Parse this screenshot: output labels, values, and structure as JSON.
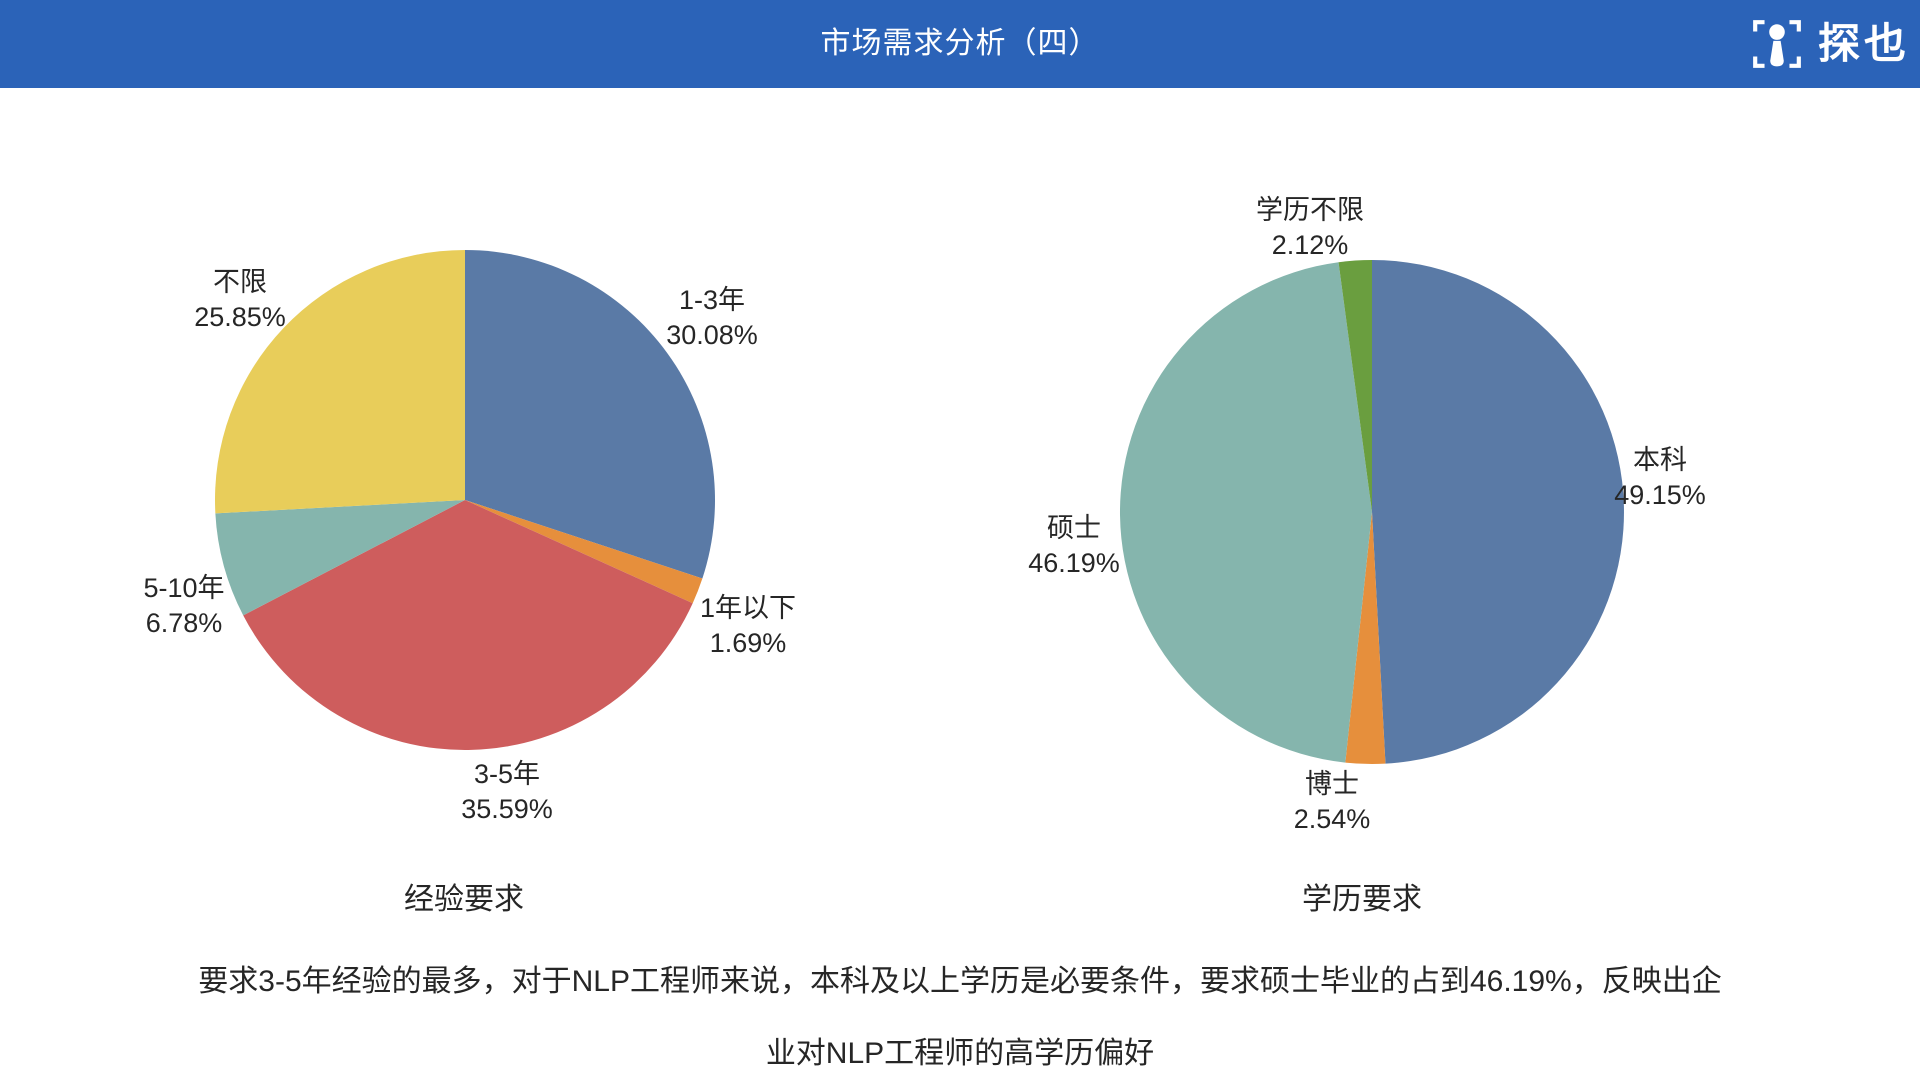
{
  "header": {
    "title": "市场需求分析（四）",
    "logo_text": "探也",
    "logo_icon": "pawn-in-brackets-icon",
    "bg_color": "#2B63B8"
  },
  "chart_data": [
    {
      "type": "pie",
      "title": "经验要求",
      "start_angle": "top",
      "direction": "clockwise",
      "slices": [
        {
          "label": "1-3年",
          "value": 30.08,
          "display": "30.08%",
          "color": "#5A7AA6"
        },
        {
          "label": "1年以下",
          "value": 1.69,
          "display": "1.69%",
          "color": "#E68F3C"
        },
        {
          "label": "3-5年",
          "value": 35.59,
          "display": "35.59%",
          "color": "#CE5D5D"
        },
        {
          "label": "5-10年",
          "value": 6.78,
          "display": "6.78%",
          "color": "#85B5AD"
        },
        {
          "label": "不限",
          "value": 25.85,
          "display": "25.85%",
          "color": "#E8CD5A"
        }
      ]
    },
    {
      "type": "pie",
      "title": "学历要求",
      "start_angle": "top",
      "direction": "clockwise",
      "slices": [
        {
          "label": "本科",
          "value": 49.15,
          "display": "49.15%",
          "color": "#5A7AA6"
        },
        {
          "label": "博士",
          "value": 2.54,
          "display": "2.54%",
          "color": "#E68F3C"
        },
        {
          "label": "硕士",
          "value": 46.19,
          "display": "46.19%",
          "color": "#85B5AD"
        },
        {
          "label": "学历不限",
          "value": 2.12,
          "display": "2.12%",
          "color": "#6A9E3F"
        }
      ]
    }
  ],
  "footer": {
    "analysis_text": "要求3-5年经验的最多，对于NLP工程师来说，本科及以上学历是必要条件，要求硕士毕业的占到46.19%，反映出企业对NLP工程师的高学历偏好"
  }
}
